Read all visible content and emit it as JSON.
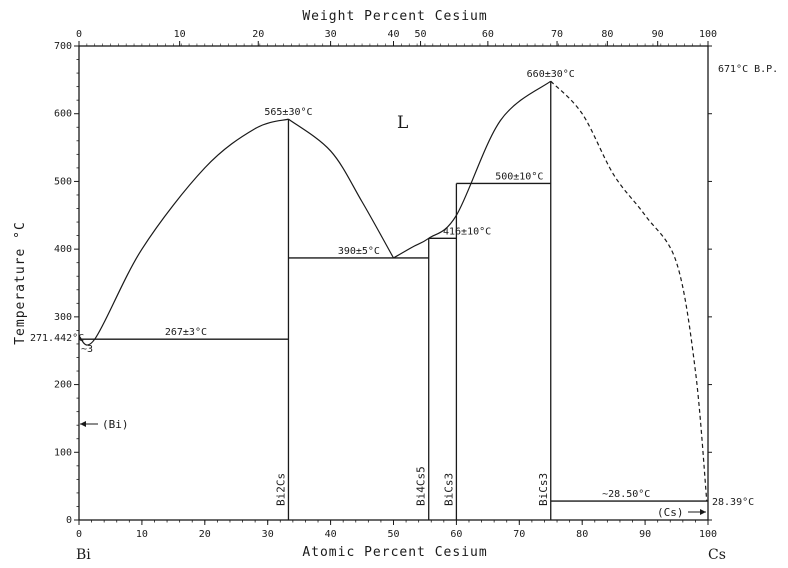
{
  "axes": {
    "top_title": "Weight Percent Cesium",
    "bottom_title": "Atomic Percent Cesium",
    "left_title": "Temperature °C",
    "left_end": "Bi",
    "right_end": "Cs",
    "y_ticks": [
      "0",
      "100",
      "200",
      "300",
      "400",
      "500",
      "600",
      "700"
    ],
    "x_ticks": [
      "0",
      "10",
      "20",
      "30",
      "40",
      "50",
      "60",
      "70",
      "80",
      "90",
      "100"
    ],
    "x_tick_values": [
      0,
      10,
      20,
      30,
      40,
      50,
      60,
      70,
      80,
      90,
      100
    ],
    "top_ticks": [
      "0",
      "10",
      "20",
      "30",
      "40",
      "50",
      "60",
      "70",
      "80",
      "90",
      "100"
    ],
    "top_tick_positions": [
      0,
      16,
      28.5,
      40,
      50,
      54.3,
      65,
      76,
      84,
      92,
      100
    ],
    "x_range": [
      0,
      100
    ],
    "y_range": [
      0,
      700
    ]
  },
  "labels": {
    "liquid": "L",
    "bi_solid": "(Bi)",
    "cs_solid": "(Cs)",
    "bi_melting": "271.442°C",
    "eutectic_comp": "~3",
    "cs_boiling": "671°C B.P.",
    "cs_melting": "28.39°C"
  },
  "temperatures": [
    {
      "text": "565±30°C",
      "x": 33.3,
      "y": 592
    },
    {
      "text": "660±30°C",
      "x": 75,
      "y": 648
    },
    {
      "text": "500±10°C",
      "x": 70,
      "y": 497
    },
    {
      "text": "416±10°C",
      "x": 61.7,
      "y": 416
    },
    {
      "text": "390±5°C",
      "x": 44.5,
      "y": 387
    },
    {
      "text": "267±3°C",
      "x": 17,
      "y": 267
    },
    {
      "text": "~28.50°C",
      "x": 87,
      "y": 28
    }
  ],
  "compounds": [
    {
      "text": "Bi2Cs",
      "x": 33.3
    },
    {
      "text": "Bi4Cs5",
      "x": 55.6
    },
    {
      "text": "BiCs3",
      "x": 60
    },
    {
      "text": "BiCs3",
      "x": 75
    }
  ],
  "curves": {
    "liquidus_bi": [
      [
        0,
        271.4
      ],
      [
        2.5,
        267
      ],
      [
        10,
        400
      ],
      [
        20,
        520
      ],
      [
        28,
        578
      ],
      [
        33.3,
        592
      ]
    ],
    "liquidus_bi2cs": [
      [
        33.3,
        592
      ],
      [
        40,
        545
      ],
      [
        45,
        470
      ],
      [
        50,
        387
      ]
    ],
    "liquidus_mid": [
      [
        50,
        387
      ],
      [
        53,
        403
      ],
      [
        55.6,
        416
      ],
      [
        60,
        450
      ],
      [
        67,
        590
      ],
      [
        75,
        648
      ]
    ],
    "liquidus_cs_dashed": [
      [
        75,
        648
      ],
      [
        80,
        600
      ],
      [
        85,
        510
      ],
      [
        90,
        450
      ],
      [
        95,
        380
      ],
      [
        98,
        220
      ],
      [
        99.8,
        28.4
      ]
    ],
    "compound_lines": [
      {
        "x": 33.3,
        "y_top": 592,
        "dashed": false
      },
      {
        "x": 55.6,
        "y_top": 416,
        "dashed": false
      },
      {
        "x": 60,
        "y_top": 497,
        "dashed": false
      },
      {
        "x": 75,
        "y_top": 648,
        "dashed": false
      }
    ],
    "isotherms": [
      {
        "x1": 0,
        "x2": 33.3,
        "y": 267
      },
      {
        "x1": 33.3,
        "x2": 55.6,
        "y": 387
      },
      {
        "x1": 55.6,
        "x2": 60,
        "y": 416
      },
      {
        "x1": 60,
        "x2": 75,
        "y": 497
      },
      {
        "x1": 75,
        "x2": 100,
        "y": 28
      }
    ]
  }
}
